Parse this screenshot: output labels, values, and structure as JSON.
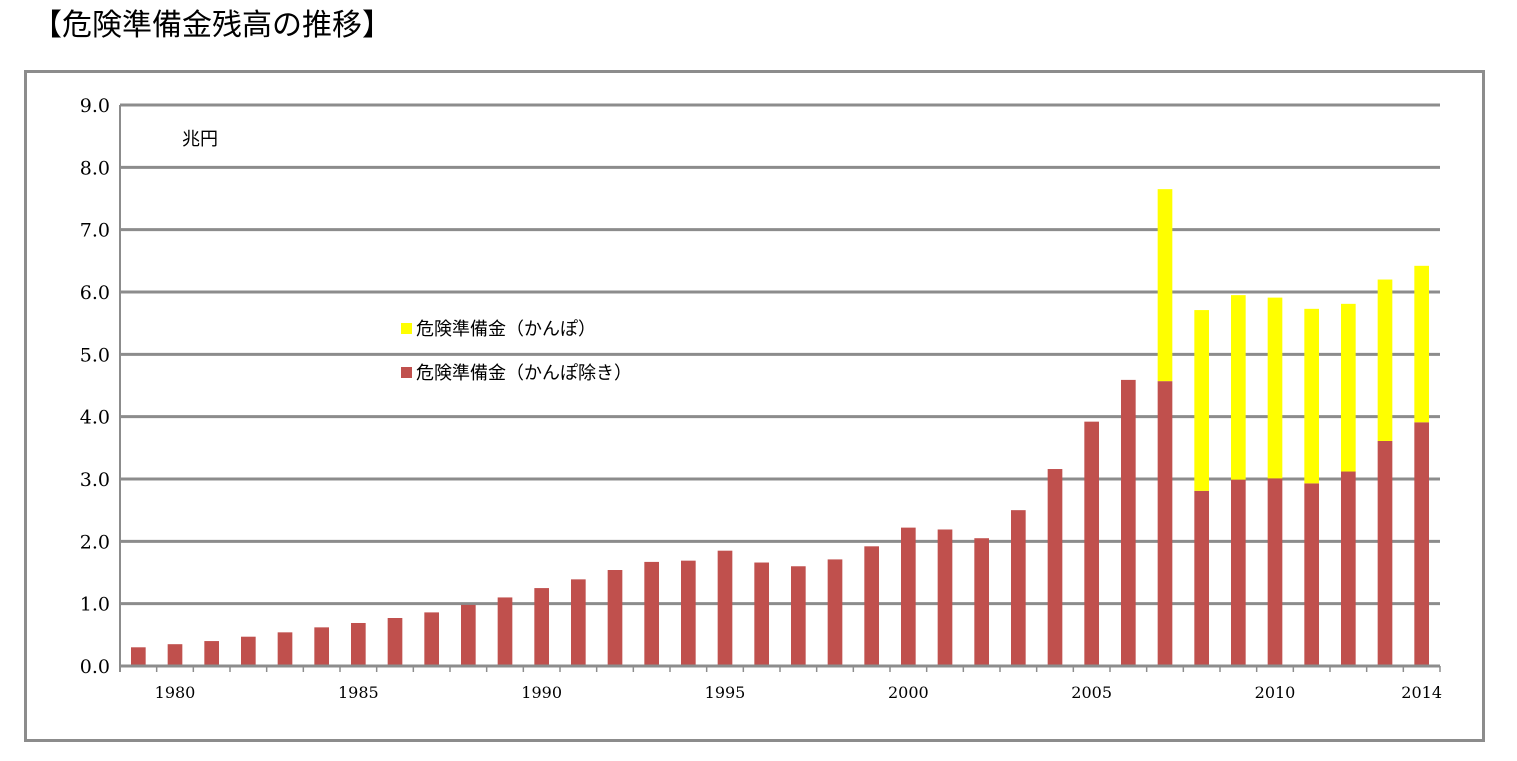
{
  "title": "【危険準備金残高の推移】",
  "chart_data": {
    "type": "bar",
    "stacked": true,
    "ylabel": "兆円",
    "ylim": [
      0,
      9
    ],
    "yticks": [
      "0.0",
      "1.0",
      "2.0",
      "3.0",
      "4.0",
      "5.0",
      "6.0",
      "7.0",
      "8.0",
      "9.0"
    ],
    "x": [
      1979,
      1980,
      1981,
      1982,
      1983,
      1984,
      1985,
      1986,
      1987,
      1988,
      1989,
      1990,
      1991,
      1992,
      1993,
      1994,
      1995,
      1996,
      1997,
      1998,
      1999,
      2000,
      2001,
      2002,
      2003,
      2004,
      2005,
      2006,
      2007,
      2008,
      2009,
      2010,
      2011,
      2012,
      2013,
      2014
    ],
    "xtick_labels": [
      "1980",
      "1985",
      "1990",
      "1995",
      "2000",
      "2005",
      "2010",
      "2014"
    ],
    "grid": true,
    "series": [
      {
        "name": "危険準備金（かんぽ除き）",
        "color": "#c0504d",
        "values": [
          0.3,
          0.35,
          0.4,
          0.47,
          0.54,
          0.62,
          0.69,
          0.77,
          0.86,
          0.98,
          1.1,
          1.25,
          1.39,
          1.54,
          1.67,
          1.69,
          1.85,
          1.66,
          1.6,
          1.71,
          1.92,
          2.22,
          2.19,
          2.05,
          2.5,
          3.16,
          3.92,
          4.59,
          4.57,
          2.81,
          2.99,
          3.01,
          2.93,
          3.12,
          3.61,
          3.91
        ]
      },
      {
        "name": "危険準備金（かんぽ）",
        "color": "#ffff00",
        "values": [
          0,
          0,
          0,
          0,
          0,
          0,
          0,
          0,
          0,
          0,
          0,
          0,
          0,
          0,
          0,
          0,
          0,
          0,
          0,
          0,
          0,
          0,
          0,
          0,
          0,
          0,
          0,
          0,
          3.08,
          2.9,
          2.96,
          2.9,
          2.8,
          2.69,
          2.59,
          2.51
        ]
      }
    ],
    "legend": {
      "position": "center-left",
      "items": [
        "危険準備金（かんぽ）",
        "危険準備金（かんぽ除き）"
      ]
    }
  }
}
